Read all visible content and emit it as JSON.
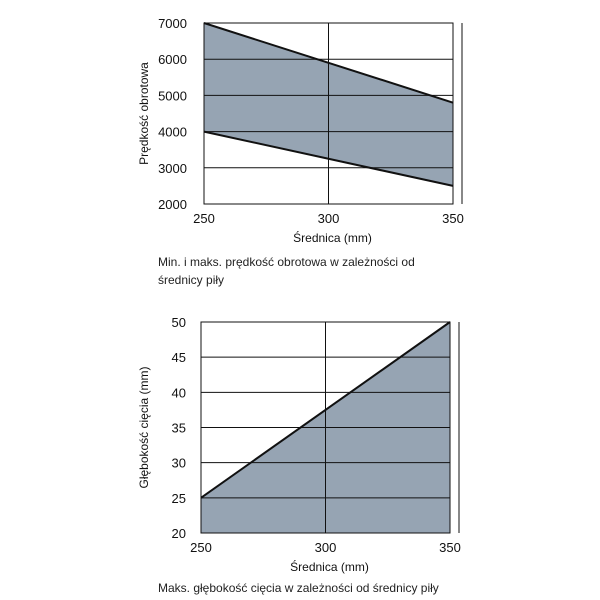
{
  "chart_data": [
    {
      "type": "area",
      "xlabel": "Średnica (mm)",
      "ylabel": "Prędkość obrotowa",
      "x_ticks": [
        "250",
        "300",
        "350"
      ],
      "y_ticks": [
        "2000",
        "3000",
        "4000",
        "5000",
        "6000",
        "7000"
      ],
      "xlim": [
        250,
        350
      ],
      "ylim": [
        2000,
        7000
      ],
      "grid": true,
      "fill_color": "#96a4b3",
      "series": [
        {
          "x": [
            250,
            350
          ],
          "values": [
            7000,
            4800
          ]
        },
        {
          "x": [
            250,
            350
          ],
          "values": [
            4000,
            2500
          ]
        }
      ],
      "caption": "Min. i maks. prędkość obrotowa w zależności od średnicy piły"
    },
    {
      "type": "area",
      "xlabel": "Średnica (mm)",
      "ylabel": "Głębokość cięcia (mm)",
      "x_ticks": [
        "250",
        "300",
        "350"
      ],
      "y_ticks": [
        "20",
        "25",
        "30",
        "35",
        "40",
        "45",
        "50"
      ],
      "xlim": [
        250,
        350
      ],
      "ylim": [
        20,
        50
      ],
      "grid": true,
      "fill_color": "#96a4b3",
      "series": [
        {
          "x": [
            250,
            350
          ],
          "values": [
            25,
            50
          ]
        }
      ],
      "caption": "Maks. głębokość cięcia w zależności od średnicy piły"
    }
  ]
}
